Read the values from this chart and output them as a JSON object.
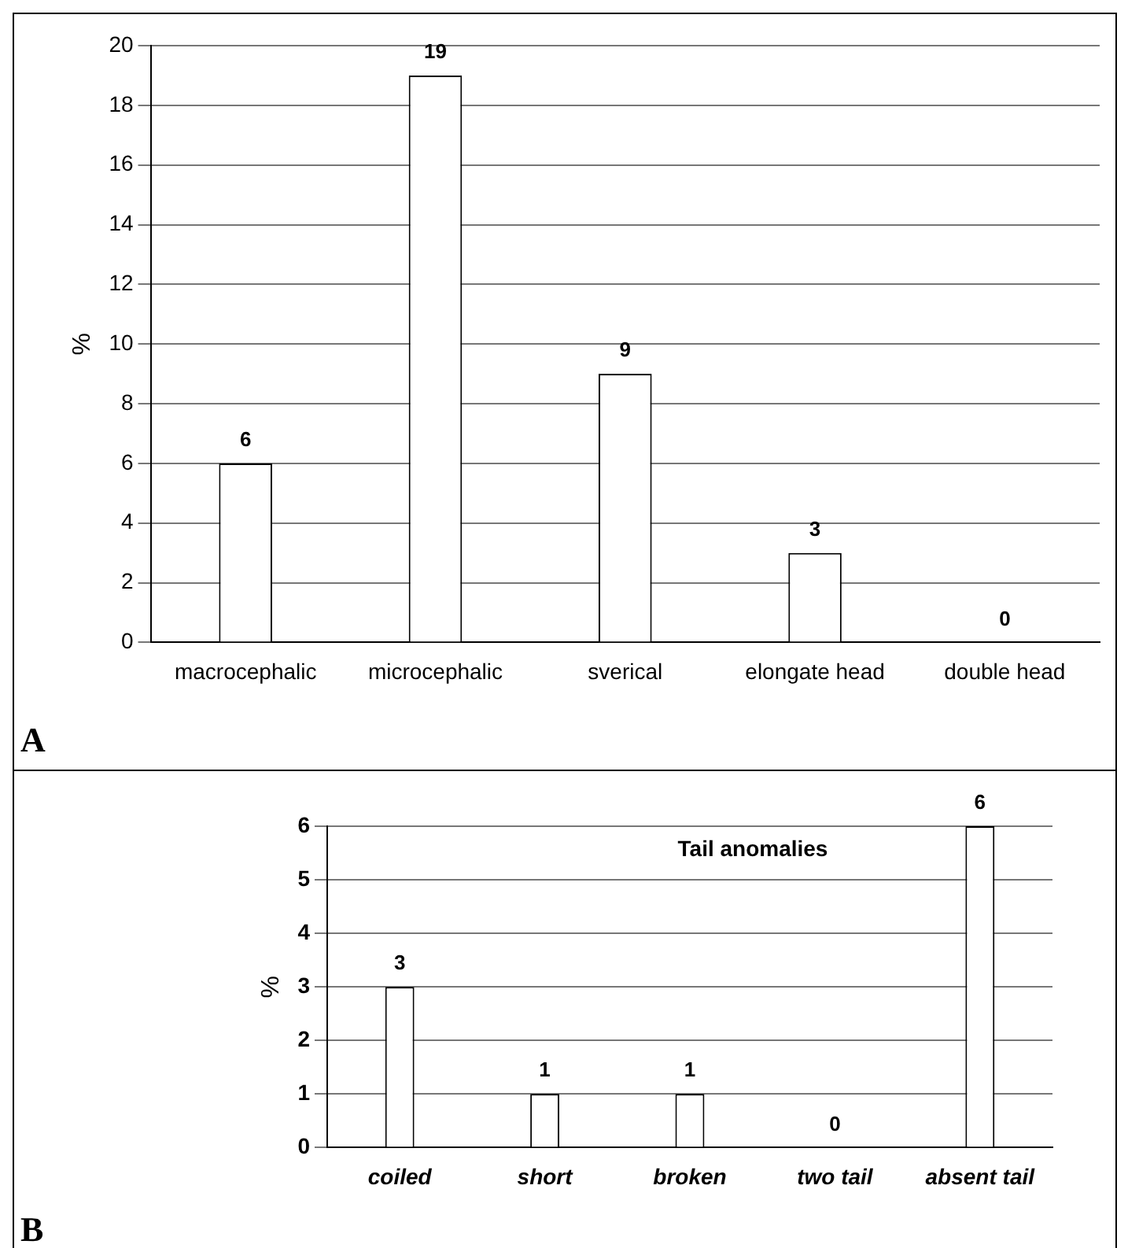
{
  "chart_data": [
    {
      "type": "bar",
      "ylabel": "%",
      "categories": [
        "macrocephalic",
        "microcephalic",
        "sverical",
        "elongate head",
        "double head"
      ],
      "values": [
        6,
        19,
        9,
        3,
        0
      ],
      "color": "#ffffff",
      "ylim": [
        0,
        20
      ],
      "yticks": [
        0,
        2,
        4,
        6,
        8,
        10,
        12,
        14,
        16,
        18,
        20
      ],
      "grid": "y",
      "data_labels": true,
      "annotations": [
        "A"
      ]
    },
    {
      "type": "bar",
      "title": "Tail anomalies",
      "ylabel": "%",
      "categories": [
        "coiled",
        "short",
        "broken",
        "two tail",
        "absent tail"
      ],
      "values": [
        3,
        1,
        1,
        0,
        6
      ],
      "color": "#ffffff",
      "ylim": [
        0,
        6
      ],
      "yticks": [
        0,
        1,
        2,
        3,
        4,
        5,
        6
      ],
      "grid": "y",
      "data_labels": true,
      "annotations": [
        "B"
      ]
    }
  ]
}
